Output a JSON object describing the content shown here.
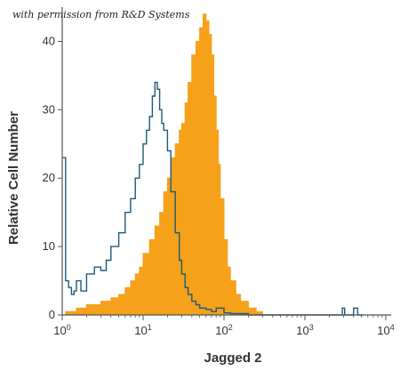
{
  "credit_text": "with permission from R&D Systems",
  "chart_data": {
    "type": "histogram",
    "title": "",
    "xlabel": "Jagged 2",
    "ylabel": "Relative Cell Number",
    "x_scale": "log",
    "xlim": [
      1,
      10000
    ],
    "ylim": [
      0,
      45
    ],
    "x_ticks": [
      {
        "value": 1,
        "label": "10",
        "exp": "0"
      },
      {
        "value": 10,
        "label": "10",
        "exp": "1"
      },
      {
        "value": 100,
        "label": "10",
        "exp": "2"
      },
      {
        "value": 1000,
        "label": "10",
        "exp": "3"
      },
      {
        "value": 10000,
        "label": "10",
        "exp": "4"
      }
    ],
    "y_ticks": [
      0,
      10,
      20,
      30,
      40
    ],
    "colors": {
      "filled": "#f5a11a",
      "outline": "#1f5a7a",
      "axis": "#555555"
    },
    "series": [
      {
        "style": "outline",
        "x": [
          1.0,
          1.1,
          1.2,
          1.3,
          1.4,
          1.5,
          1.7,
          2,
          2.5,
          3,
          3.5,
          4,
          5,
          6,
          7,
          8,
          9,
          10,
          11,
          12,
          13,
          14,
          15,
          16,
          17,
          18,
          20,
          22,
          25,
          28,
          30,
          33,
          36,
          40,
          45,
          50,
          60,
          70,
          80,
          100,
          120,
          200,
          500,
          1000,
          2500,
          2900,
          3100,
          3500,
          4000,
          4500,
          5000
        ],
        "y": [
          23,
          5,
          4,
          3,
          3.5,
          5,
          3.5,
          6,
          7,
          6.5,
          8,
          10,
          12,
          15,
          17,
          20,
          22,
          25,
          27,
          29,
          32,
          34,
          33,
          30,
          28,
          27,
          24,
          18,
          12,
          8,
          6,
          4,
          3,
          2,
          1.5,
          1,
          0.8,
          0.5,
          1,
          0.3,
          0.2,
          0,
          0,
          0,
          0,
          1,
          0,
          0,
          1,
          0,
          0
        ]
      },
      {
        "style": "filled",
        "x": [
          1.1,
          1.5,
          2,
          3,
          4,
          5,
          6,
          7,
          8,
          9,
          10,
          12,
          14,
          16,
          18,
          20,
          22,
          25,
          28,
          30,
          33,
          36,
          40,
          45,
          50,
          55,
          60,
          65,
          70,
          75,
          80,
          85,
          90,
          100,
          110,
          120,
          140,
          160,
          200,
          250,
          300
        ],
        "y": [
          0.5,
          1,
          1.5,
          2,
          2.5,
          3,
          4,
          5,
          6,
          7,
          9,
          11,
          13,
          15,
          18,
          20,
          23,
          25,
          27,
          28,
          31,
          34,
          38,
          40,
          42,
          44,
          43,
          41,
          38,
          32,
          27,
          22,
          17,
          11,
          7,
          5,
          3,
          2,
          1,
          0.5,
          0
        ]
      }
    ]
  }
}
